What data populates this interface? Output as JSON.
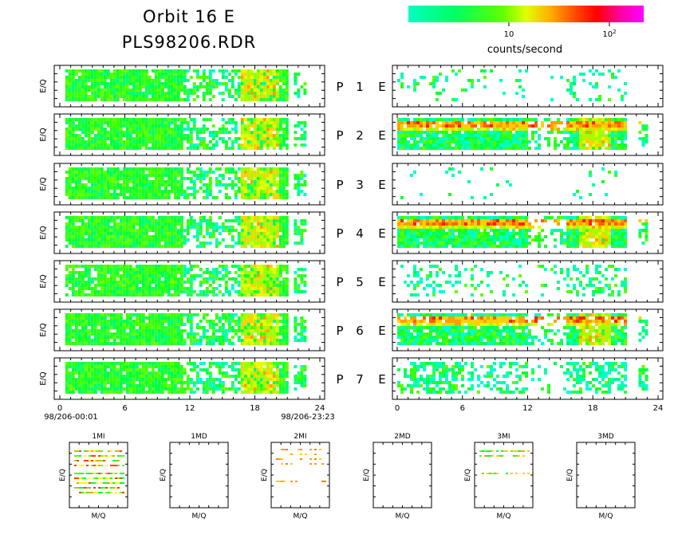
{
  "header": {
    "title": "Orbit 16 E",
    "subtitle": "PLS98206.RDR"
  },
  "colorbar": {
    "label": "counts/second",
    "tick_10": "10",
    "tick_100_base": "10",
    "tick_100_exp": "2",
    "colors": [
      "#00ffbf",
      "#00ff40",
      "#bfff00",
      "#ffff00",
      "#ffa000",
      "#ff0000",
      "#ff00a0",
      "#ff00ff"
    ]
  },
  "chart_data": {
    "type": "heatmap",
    "panels": {
      "y_label": "E/Q",
      "rows": [
        {
          "p": "P",
          "n": "1",
          "e": "E"
        },
        {
          "p": "P",
          "n": "2",
          "e": "E"
        },
        {
          "p": "P",
          "n": "3",
          "e": "E"
        },
        {
          "p": "P",
          "n": "4",
          "e": "E"
        },
        {
          "p": "P",
          "n": "5",
          "e": "E"
        },
        {
          "p": "P",
          "n": "6",
          "e": "E"
        },
        {
          "p": "P",
          "n": "7",
          "e": "E"
        }
      ],
      "x_range": [
        0,
        24
      ],
      "x_ticks": [
        "0",
        "6",
        "12",
        "18",
        "24"
      ],
      "left_data_span_hours": [
        0.5,
        20.9
      ],
      "left_extra_span_hours": [
        21.6,
        22.6
      ],
      "right_data_span_hours": [
        0.0,
        21.0
      ],
      "right_extra_span_hours": [
        22.2,
        23.0
      ],
      "start_label": "98/206-00:01",
      "end_label": "98/206-23:23"
    },
    "small_plots": [
      {
        "title": "1MI",
        "xlabel": "M/Q",
        "ylabel": "E/Q"
      },
      {
        "title": "1MD",
        "xlabel": "M/Q",
        "ylabel": "E/Q"
      },
      {
        "title": "2MI",
        "xlabel": "M/Q",
        "ylabel": "E/Q"
      },
      {
        "title": "2MD",
        "xlabel": "M/Q",
        "ylabel": "E/Q"
      },
      {
        "title": "3MI",
        "xlabel": "M/Q",
        "ylabel": "E/Q"
      },
      {
        "title": "3MD",
        "xlabel": "M/Q",
        "ylabel": "E/Q"
      }
    ]
  }
}
